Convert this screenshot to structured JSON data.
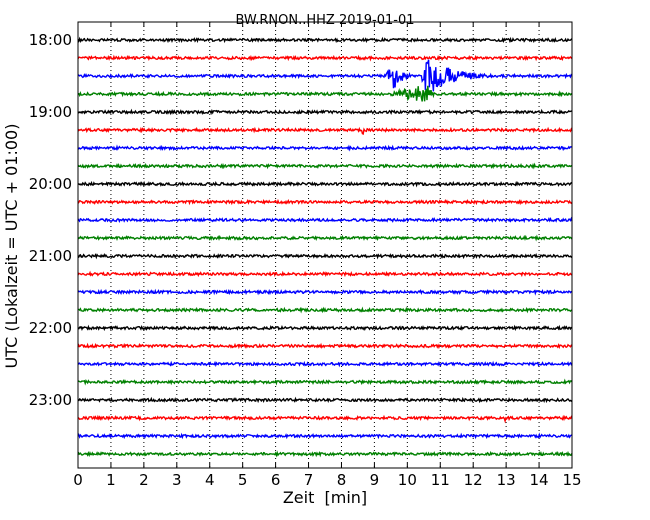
{
  "chart_data": {
    "type": "line",
    "title": "BW.RNON..HHZ 2019-01-01",
    "xlabel": "Zeit  [min]",
    "ylabel": "UTC (Lokalzeit = UTC + 01:00)",
    "xlim": [
      0,
      15
    ],
    "x_ticks": [
      "0",
      "1",
      "2",
      "3",
      "4",
      "5",
      "6",
      "7",
      "8",
      "9",
      "10",
      "11",
      "12",
      "13",
      "14",
      "15"
    ],
    "y_ticks": [
      "18:00",
      "19:00",
      "20:00",
      "21:00",
      "22:00",
      "23:00"
    ],
    "grid": "vertical dotted at each minute",
    "trace_interval_minutes": 15,
    "trace_colors": [
      "#000000",
      "#ff0000",
      "#0000ff",
      "#008000"
    ],
    "traces": [
      {
        "start": "18:00",
        "color": "#000000",
        "events": []
      },
      {
        "start": "18:15",
        "color": "#ff0000",
        "events": []
      },
      {
        "start": "18:30",
        "color": "#0000ff",
        "events": [
          {
            "t_start": 9.3,
            "t_peak": 9.6,
            "t_end": 10.4,
            "amplitude": "strong"
          },
          {
            "t_start": 10.4,
            "t_peak": 10.6,
            "t_end": 13.0,
            "amplitude": "very strong"
          }
        ]
      },
      {
        "start": "18:45",
        "color": "#008000",
        "events": [
          {
            "t_start": 9.3,
            "t_peak": 10.6,
            "t_end": 11.0,
            "amplitude": "moderate"
          }
        ]
      },
      {
        "start": "19:00",
        "color": "#000000",
        "events": []
      },
      {
        "start": "19:15",
        "color": "#ff0000",
        "events": [
          {
            "t_start": 8.55,
            "t_peak": 8.65,
            "t_end": 8.8,
            "amplitude": "spike"
          }
        ]
      },
      {
        "start": "19:30",
        "color": "#0000ff",
        "events": []
      },
      {
        "start": "19:45",
        "color": "#008000",
        "events": []
      },
      {
        "start": "20:00",
        "color": "#000000",
        "events": []
      },
      {
        "start": "20:15",
        "color": "#ff0000",
        "events": []
      },
      {
        "start": "20:30",
        "color": "#0000ff",
        "events": []
      },
      {
        "start": "20:45",
        "color": "#008000",
        "events": []
      },
      {
        "start": "21:00",
        "color": "#000000",
        "events": []
      },
      {
        "start": "21:15",
        "color": "#ff0000",
        "events": []
      },
      {
        "start": "21:30",
        "color": "#0000ff",
        "events": []
      },
      {
        "start": "21:45",
        "color": "#008000",
        "events": []
      },
      {
        "start": "22:00",
        "color": "#000000",
        "events": []
      },
      {
        "start": "22:15",
        "color": "#ff0000",
        "events": []
      },
      {
        "start": "22:30",
        "color": "#0000ff",
        "events": []
      },
      {
        "start": "22:45",
        "color": "#008000",
        "events": []
      },
      {
        "start": "23:00",
        "color": "#000000",
        "events": []
      },
      {
        "start": "23:15",
        "color": "#ff0000",
        "events": [
          {
            "t_start": 12.9,
            "t_peak": 13.0,
            "t_end": 13.1,
            "amplitude": "spike"
          }
        ]
      },
      {
        "start": "23:30",
        "color": "#0000ff",
        "events": []
      },
      {
        "start": "23:45",
        "color": "#008000",
        "events": []
      }
    ]
  }
}
